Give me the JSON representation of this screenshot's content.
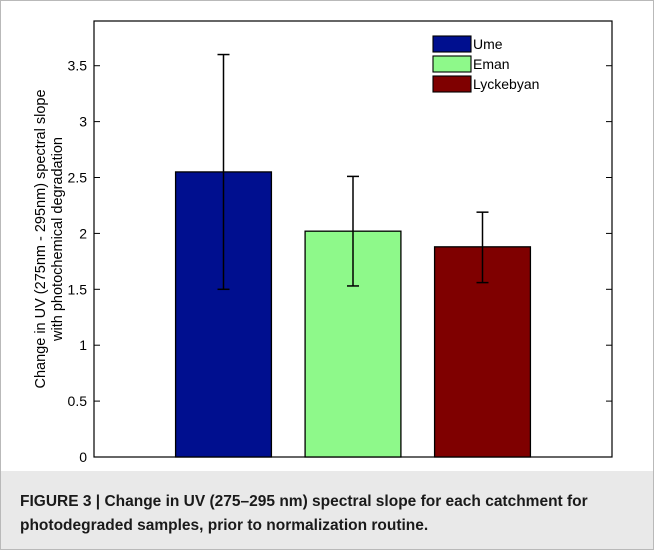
{
  "caption": {
    "label": "FIGURE 3 |",
    "text": "Change in UV (275–295 nm) spectral slope for each catchment for photodegraded samples, prior to normalization routine."
  },
  "chart_data": {
    "type": "bar",
    "categories": [
      "Ume",
      "Eman",
      "Lyckebyan"
    ],
    "values": [
      2.55,
      2.02,
      1.88
    ],
    "error_bars": [
      {
        "low": 1.5,
        "high": 3.6
      },
      {
        "low": 1.53,
        "high": 2.51
      },
      {
        "low": 1.56,
        "high": 2.19
      }
    ],
    "colors": [
      "#000f8f",
      "#8ef98a",
      "#7f0000"
    ],
    "ylabel_lines": [
      "Change in UV (275nm - 295nm) spectral slope",
      "with photochemical degradation"
    ],
    "xlabel": "",
    "ylim": [
      0,
      3.9
    ],
    "yticks": [
      0,
      0.5,
      1,
      1.5,
      2,
      2.5,
      3,
      3.5
    ],
    "ytick_labels": [
      "0",
      "0.5",
      "1",
      "1.5",
      "2",
      "2.5",
      "3",
      "3.5"
    ],
    "legend": {
      "placement": "top-right",
      "entries": [
        "Ume",
        "Eman",
        "Lyckebyan"
      ]
    },
    "grid": false
  }
}
